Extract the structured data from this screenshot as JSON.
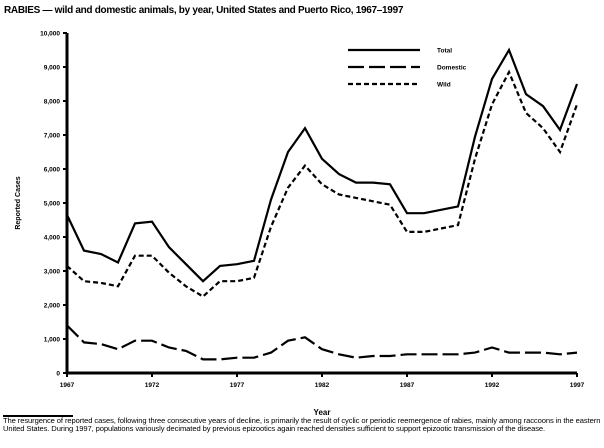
{
  "title": "RABIES — wild and domestic animals, by year, United States and Puerto Rico, 1967–1997",
  "footnote": "The resurgence of reported cases, following three consecutive years of decline, is primarily the result of cyclic or periodic reemergence of rabies, mainly among raccoons in the eastern United States. During 1997, populations variously decimated by previous epizootics again reached densities sufficient to support epizootic transmission of the disease.",
  "chart_data": {
    "type": "line",
    "xlabel": "Year",
    "ylabel": "Reported Cases",
    "xlim": [
      1967,
      1997
    ],
    "ylim": [
      0,
      10000
    ],
    "x_ticks": [
      1967,
      1972,
      1977,
      1982,
      1987,
      1992,
      1997
    ],
    "y_ticks": [
      "0",
      "1,000",
      "2,000",
      "3,000",
      "4,000",
      "5,000",
      "6,000",
      "7,000",
      "8,000",
      "9,000",
      "10,000"
    ],
    "legend_position": "top-right",
    "grid": false,
    "x": [
      1967,
      1968,
      1969,
      1970,
      1971,
      1972,
      1973,
      1974,
      1975,
      1976,
      1977,
      1978,
      1979,
      1980,
      1981,
      1982,
      1983,
      1984,
      1985,
      1986,
      1987,
      1988,
      1989,
      1990,
      1991,
      1992,
      1993,
      1994,
      1995,
      1996,
      1997
    ],
    "series": [
      {
        "name": "Total",
        "style": "solid",
        "values": [
          4650,
          3600,
          3500,
          3250,
          4400,
          4450,
          3700,
          3200,
          2700,
          3150,
          3200,
          3300,
          5100,
          6500,
          7200,
          6300,
          5850,
          5600,
          5600,
          5550,
          4700,
          4700,
          4800,
          4900,
          6950,
          8650,
          9500,
          8200,
          7850,
          7150,
          8500
        ]
      },
      {
        "name": "Domestic",
        "style": "long-dash",
        "values": [
          1400,
          900,
          850,
          700,
          950,
          950,
          750,
          650,
          400,
          400,
          450,
          450,
          600,
          950,
          1050,
          700,
          550,
          450,
          500,
          500,
          550,
          550,
          550,
          550,
          600,
          750,
          600,
          600,
          600,
          550,
          600
        ]
      },
      {
        "name": "Wild",
        "style": "short-dash",
        "values": [
          3150,
          2700,
          2650,
          2550,
          3450,
          3450,
          2950,
          2550,
          2250,
          2700,
          2700,
          2800,
          4300,
          5450,
          6100,
          5550,
          5250,
          5150,
          5050,
          4950,
          4150,
          4150,
          4250,
          4350,
          6300,
          7900,
          8850,
          7650,
          7200,
          6500,
          7900
        ]
      }
    ]
  }
}
